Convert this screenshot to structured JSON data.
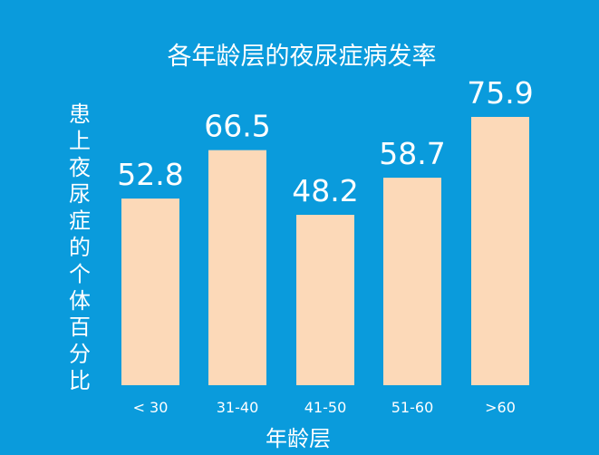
{
  "chart_data": {
    "type": "bar",
    "title": "各年龄层的夜尿症病发率",
    "categories": [
      "< 30",
      "31-40",
      "41-50",
      "51-60",
      ">60"
    ],
    "values": [
      52.8,
      66.5,
      48.2,
      58.7,
      75.9
    ],
    "value_labels": [
      "52.8",
      "66.5",
      "48.2",
      "58.7",
      "75.9"
    ],
    "xlabel": "年龄层",
    "ylabel": "患上夜尿症的个体百分比",
    "ylim": [
      0,
      100
    ],
    "grid": false,
    "legend": "none",
    "colors": {
      "background": "#0a9bdc",
      "bar": "#fcd9b8",
      "text": "#ffffff"
    }
  }
}
